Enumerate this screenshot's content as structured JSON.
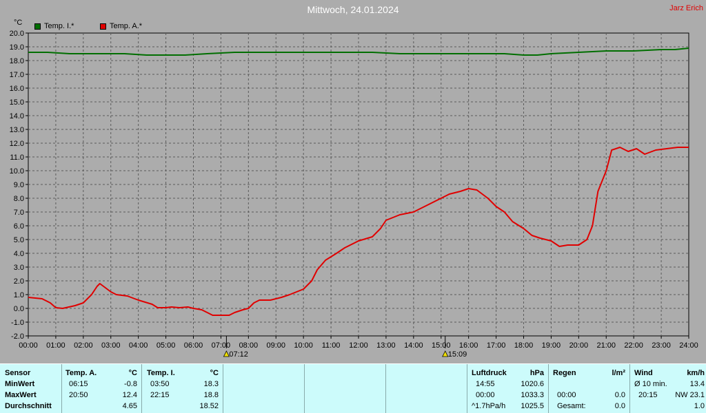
{
  "header": {
    "title": "Mittwoch, 24.01.2024",
    "author": "Jarz Erich",
    "unit": "°C"
  },
  "legend": [
    {
      "label": "Temp. I.*",
      "color": "#006e00"
    },
    {
      "label": "Temp. A.*",
      "color": "#e00000"
    }
  ],
  "markers": {
    "sunrise": "07:12",
    "sunset": "15:09"
  },
  "chart_data": {
    "type": "line",
    "ylim": [
      -2.0,
      20.0
    ],
    "yticks": [
      "-2.0",
      "-1.0",
      "0.0",
      "1.0",
      "2.0",
      "3.0",
      "4.0",
      "5.0",
      "6.0",
      "7.0",
      "8.0",
      "9.0",
      "10.0",
      "11.0",
      "12.0",
      "13.0",
      "14.0",
      "15.0",
      "16.0",
      "17.0",
      "18.0",
      "19.0",
      "20.0"
    ],
    "xticks": [
      "00:00",
      "01:00",
      "02:00",
      "03:00",
      "04:00",
      "05:00",
      "06:00",
      "07:00",
      "08:00",
      "09:00",
      "10:00",
      "11:00",
      "12:00",
      "13:00",
      "14:00",
      "15:00",
      "16:00",
      "17:00",
      "18:00",
      "19:00",
      "20:00",
      "21:00",
      "22:00",
      "23:00",
      "24:00"
    ],
    "grid": true,
    "series": [
      {
        "name": "Temp. I.*",
        "color": "#006e00",
        "points": [
          [
            0,
            18.6
          ],
          [
            0.7,
            18.6
          ],
          [
            1.5,
            18.5
          ],
          [
            2.5,
            18.5
          ],
          [
            3.5,
            18.5
          ],
          [
            4.3,
            18.4
          ],
          [
            5,
            18.4
          ],
          [
            5.7,
            18.4
          ],
          [
            6.5,
            18.5
          ],
          [
            7.5,
            18.6
          ],
          [
            8.5,
            18.6
          ],
          [
            9.5,
            18.6
          ],
          [
            10.5,
            18.6
          ],
          [
            11.5,
            18.6
          ],
          [
            12.5,
            18.6
          ],
          [
            13.5,
            18.5
          ],
          [
            14.5,
            18.5
          ],
          [
            15.5,
            18.5
          ],
          [
            16.5,
            18.5
          ],
          [
            17.3,
            18.5
          ],
          [
            18,
            18.4
          ],
          [
            18.5,
            18.4
          ],
          [
            19,
            18.5
          ],
          [
            20,
            18.6
          ],
          [
            21,
            18.7
          ],
          [
            22,
            18.7
          ],
          [
            23,
            18.8
          ],
          [
            23.5,
            18.8
          ],
          [
            24,
            18.9
          ]
        ]
      },
      {
        "name": "Temp. A.*",
        "color": "#e00000",
        "points": [
          [
            0,
            0.8
          ],
          [
            0.5,
            0.7
          ],
          [
            0.8,
            0.4
          ],
          [
            1,
            0.05
          ],
          [
            1.25,
            0.0
          ],
          [
            1.7,
            0.2
          ],
          [
            2,
            0.4
          ],
          [
            2.3,
            1.0
          ],
          [
            2.5,
            1.6
          ],
          [
            2.6,
            1.8
          ],
          [
            2.8,
            1.5
          ],
          [
            3,
            1.2
          ],
          [
            3.2,
            1.0
          ],
          [
            3.6,
            0.9
          ],
          [
            4,
            0.6
          ],
          [
            4.5,
            0.3
          ],
          [
            4.7,
            0.05
          ],
          [
            5,
            0.05
          ],
          [
            5.2,
            0.1
          ],
          [
            5.5,
            0.05
          ],
          [
            5.8,
            0.1
          ],
          [
            6,
            0.0
          ],
          [
            6.3,
            -0.1
          ],
          [
            6.5,
            -0.3
          ],
          [
            6.7,
            -0.5
          ],
          [
            7,
            -0.5
          ],
          [
            7.3,
            -0.5
          ],
          [
            7.5,
            -0.3
          ],
          [
            7.8,
            -0.1
          ],
          [
            8,
            0.0
          ],
          [
            8.2,
            0.4
          ],
          [
            8.4,
            0.6
          ],
          [
            8.8,
            0.6
          ],
          [
            9.2,
            0.8
          ],
          [
            9.5,
            1.0
          ],
          [
            10,
            1.4
          ],
          [
            10.3,
            2.0
          ],
          [
            10.5,
            2.8
          ],
          [
            10.8,
            3.5
          ],
          [
            11.2,
            4.0
          ],
          [
            11.5,
            4.4
          ],
          [
            12,
            4.9
          ],
          [
            12.5,
            5.2
          ],
          [
            12.8,
            5.8
          ],
          [
            13,
            6.4
          ],
          [
            13.5,
            6.8
          ],
          [
            14,
            7.0
          ],
          [
            14.5,
            7.5
          ],
          [
            15,
            8.0
          ],
          [
            15.3,
            8.3
          ],
          [
            15.7,
            8.5
          ],
          [
            16,
            8.7
          ],
          [
            16.3,
            8.6
          ],
          [
            16.7,
            8.0
          ],
          [
            17,
            7.4
          ],
          [
            17.3,
            7.0
          ],
          [
            17.6,
            6.3
          ],
          [
            18,
            5.8
          ],
          [
            18.3,
            5.3
          ],
          [
            18.6,
            5.1
          ],
          [
            19,
            4.9
          ],
          [
            19.3,
            4.5
          ],
          [
            19.6,
            4.6
          ],
          [
            20,
            4.6
          ],
          [
            20.3,
            5.0
          ],
          [
            20.5,
            6.0
          ],
          [
            20.7,
            8.5
          ],
          [
            21,
            10.0
          ],
          [
            21.2,
            11.5
          ],
          [
            21.5,
            11.7
          ],
          [
            21.8,
            11.4
          ],
          [
            22.1,
            11.6
          ],
          [
            22.4,
            11.2
          ],
          [
            22.8,
            11.5
          ],
          [
            23.2,
            11.6
          ],
          [
            23.6,
            11.7
          ],
          [
            24,
            11.7
          ]
        ]
      }
    ]
  },
  "table": {
    "row_labels": [
      "Sensor",
      "MinWert",
      "MaxWert",
      "Durchschnitt"
    ],
    "temp_a": {
      "header": "Temp. A.",
      "unit": "°C",
      "min_time": "06:15",
      "min_val": "-0.8",
      "max_time": "20:50",
      "max_val": "12.4",
      "avg": "4.65"
    },
    "temp_i": {
      "header": "Temp. I.",
      "unit": "°C",
      "min_time": "03:50",
      "min_val": "18.3",
      "max_time": "22:15",
      "max_val": "18.8",
      "avg": "18.52"
    },
    "luftdruck": {
      "header": "Luftdruck",
      "unit": "hPa",
      "min_time": "14:55",
      "min_val": "1020.6",
      "max_time": "00:00",
      "max_val": "1033.3",
      "trend": "^1.7hPa/h",
      "avg": "1025.5"
    },
    "regen": {
      "header": "Regen",
      "unit": "l/m²",
      "time": "00:00",
      "val": "0.0",
      "total_label": "Gesamt:",
      "total": "0.0",
      "first_val": "0.0"
    },
    "wind": {
      "header": "Wind",
      "unit": "km/h",
      "avg_label": "Ø 10 min.",
      "avg_val": "13.4",
      "max_time": "20:15",
      "max_val": "NW 23.1",
      "last_val": "1.0"
    }
  }
}
